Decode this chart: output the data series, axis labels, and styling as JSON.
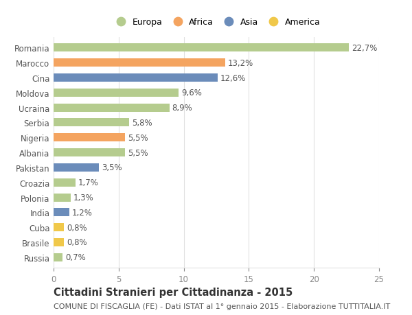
{
  "countries": [
    "Romania",
    "Marocco",
    "Cina",
    "Moldova",
    "Ucraina",
    "Serbia",
    "Nigeria",
    "Albania",
    "Pakistan",
    "Croazia",
    "Polonia",
    "India",
    "Cuba",
    "Brasile",
    "Russia"
  ],
  "values": [
    22.7,
    13.2,
    12.6,
    9.6,
    8.9,
    5.8,
    5.5,
    5.5,
    3.5,
    1.7,
    1.3,
    1.2,
    0.8,
    0.8,
    0.7
  ],
  "labels": [
    "22,7%",
    "13,2%",
    "12,6%",
    "9,6%",
    "8,9%",
    "5,8%",
    "5,5%",
    "5,5%",
    "3,5%",
    "1,7%",
    "1,3%",
    "1,2%",
    "0,8%",
    "0,8%",
    "0,7%"
  ],
  "continents": [
    "Europa",
    "Africa",
    "Asia",
    "Europa",
    "Europa",
    "Europa",
    "Africa",
    "Europa",
    "Asia",
    "Europa",
    "Europa",
    "Asia",
    "America",
    "America",
    "Europa"
  ],
  "colors": {
    "Europa": "#b5cc8e",
    "Africa": "#f4a460",
    "Asia": "#6b8cba",
    "America": "#f0c84a"
  },
  "xlim": [
    0,
    25
  ],
  "xticks": [
    0,
    5,
    10,
    15,
    20,
    25
  ],
  "title": "Cittadini Stranieri per Cittadinanza - 2015",
  "subtitle": "COMUNE DI FISCAGLIA (FE) - Dati ISTAT al 1° gennaio 2015 - Elaborazione TUTTITALIA.IT",
  "background_color": "#ffffff",
  "bar_height": 0.55,
  "grid_color": "#e0e0e0",
  "text_color": "#555555",
  "axis_text_color": "#888888",
  "label_fontsize": 8.5,
  "title_fontsize": 10.5,
  "subtitle_fontsize": 8,
  "legend_fontsize": 9
}
